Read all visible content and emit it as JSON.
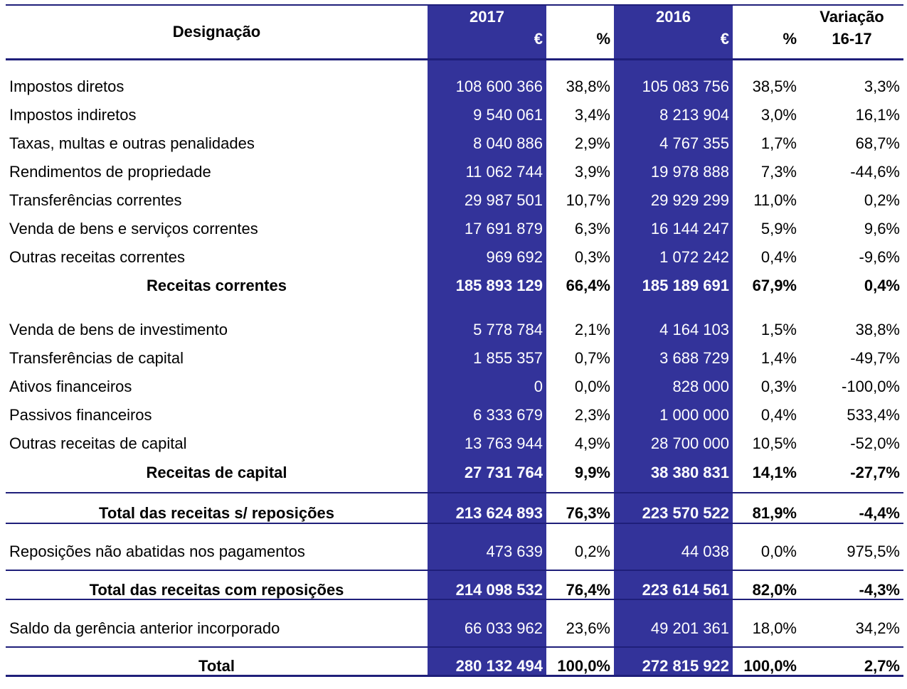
{
  "header": {
    "designacao": "Designação",
    "year_2017": "2017",
    "year_2016": "2016",
    "variacao": "Variação",
    "euro_2017": "€",
    "pct_2017": "%",
    "euro_2016": "€",
    "pct_2016": "%",
    "var_period": "16-17"
  },
  "rows": [
    {
      "name": "Impostos diretos",
      "v2017": "108 600 366",
      "p2017": "38,8%",
      "v2016": "105 083 756",
      "p2016": "38,5%",
      "var": "3,3%"
    },
    {
      "name": "Impostos indiretos",
      "v2017": "9 540 061",
      "p2017": "3,4%",
      "v2016": "8 213 904",
      "p2016": "3,0%",
      "var": "16,1%"
    },
    {
      "name": "Taxas, multas e outras penalidades",
      "v2017": "8 040 886",
      "p2017": "2,9%",
      "v2016": "4 767 355",
      "p2016": "1,7%",
      "var": "68,7%"
    },
    {
      "name": "Rendimentos de propriedade",
      "v2017": "11 062 744",
      "p2017": "3,9%",
      "v2016": "19 978 888",
      "p2016": "7,3%",
      "var": "-44,6%"
    },
    {
      "name": "Transferências correntes",
      "v2017": "29 987 501",
      "p2017": "10,7%",
      "v2016": "29 929 299",
      "p2016": "11,0%",
      "var": "0,2%"
    },
    {
      "name": "Venda de bens e serviços correntes",
      "v2017": "17 691 879",
      "p2017": "6,3%",
      "v2016": "16 144 247",
      "p2016": "5,9%",
      "var": "9,6%"
    },
    {
      "name": "Outras receitas correntes",
      "v2017": "969 692",
      "p2017": "0,3%",
      "v2016": "1 072 242",
      "p2016": "0,4%",
      "var": "-9,6%"
    },
    {
      "name": "Receitas correntes",
      "v2017": "185 893 129",
      "p2017": "66,4%",
      "v2016": "185 189 691",
      "p2016": "67,9%",
      "var": "0,4%"
    },
    {
      "name": "Venda de bens de investimento",
      "v2017": "5 778 784",
      "p2017": "2,1%",
      "v2016": "4 164 103",
      "p2016": "1,5%",
      "var": "38,8%"
    },
    {
      "name": "Transferências de capital",
      "v2017": "1 855 357",
      "p2017": "0,7%",
      "v2016": "3 688 729",
      "p2016": "1,4%",
      "var": "-49,7%"
    },
    {
      "name": "Ativos financeiros",
      "v2017": "0",
      "p2017": "0,0%",
      "v2016": "828 000",
      "p2016": "0,3%",
      "var": "-100,0%"
    },
    {
      "name": "Passivos financeiros",
      "v2017": "6 333 679",
      "p2017": "2,3%",
      "v2016": "1 000 000",
      "p2016": "0,4%",
      "var": "533,4%"
    },
    {
      "name": "Outras receitas de capital",
      "v2017": "13 763 944",
      "p2017": "4,9%",
      "v2016": "28 700 000",
      "p2016": "10,5%",
      "var": "-52,0%"
    },
    {
      "name": "Receitas de capital",
      "v2017": "27 731 764",
      "p2017": "9,9%",
      "v2016": "38 380 831",
      "p2016": "14,1%",
      "var": "-27,7%"
    },
    {
      "name": "Total das receitas s/ reposições",
      "v2017": "213 624 893",
      "p2017": "76,3%",
      "v2016": "223 570 522",
      "p2016": "81,9%",
      "var": "-4,4%"
    },
    {
      "name": "Reposições não abatidas nos pagamentos",
      "v2017": "473 639",
      "p2017": "0,2%",
      "v2016": "44 038",
      "p2016": "0,0%",
      "var": "975,5%"
    },
    {
      "name": "Total das receitas com reposições",
      "v2017": "214 098 532",
      "p2017": "76,4%",
      "v2016": "223 614 561",
      "p2016": "82,0%",
      "var": "-4,3%"
    },
    {
      "name": "Saldo da gerência anterior incorporado",
      "v2017": "66 033 962",
      "p2017": "23,6%",
      "v2016": "49 201 361",
      "p2016": "18,0%",
      "var": "34,2%"
    },
    {
      "name": "Total",
      "v2017": "280 132 494",
      "p2017": "100,0%",
      "v2016": "272 815 922",
      "p2016": "100,0%",
      "var": "2,7%"
    }
  ],
  "colors": {
    "band": "#33339a",
    "rule": "#1f1f7a"
  }
}
